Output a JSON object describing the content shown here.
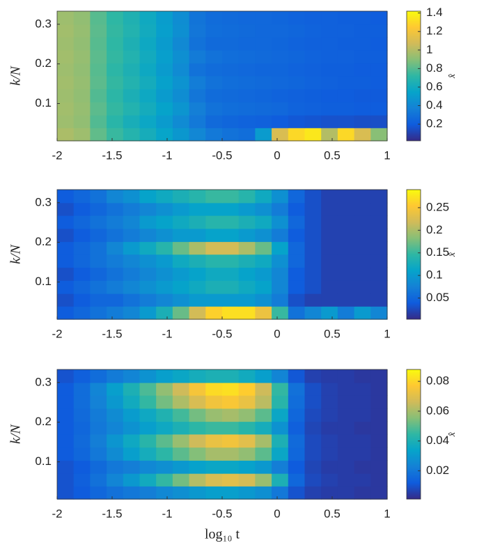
{
  "chart_data": [
    {
      "type": "heatmap",
      "colormap": "parula",
      "ylabel": "k/N",
      "colorbar_label": "x̂",
      "xbins": [
        -2,
        -1.85,
        -1.7,
        -1.55,
        -1.4,
        -1.25,
        -1.1,
        -0.95,
        -0.8,
        -0.65,
        -0.5,
        -0.35,
        -0.2,
        -0.05,
        0.1,
        0.25,
        0.4,
        0.55,
        0.7,
        0.85,
        1
      ],
      "ybins": [
        0.006,
        0.039,
        0.071,
        0.104,
        0.137,
        0.17,
        0.202,
        0.235,
        0.268,
        0.3,
        0.333
      ],
      "xlim": [
        -2,
        1
      ],
      "ylim": [
        0.006,
        0.333
      ],
      "xticks": [
        -2,
        -1.5,
        -1,
        -0.5,
        0,
        0.5,
        1
      ],
      "yticks": [
        0.1,
        0.2,
        0.3
      ],
      "clim": [
        0.02,
        1.42
      ],
      "cticks": [
        0.2,
        0.4,
        0.6,
        0.8,
        1,
        1.2,
        1.4
      ],
      "values": [
        [
          0.98,
          0.95,
          0.82,
          0.74,
          0.68,
          0.62,
          0.55,
          0.48,
          0.4,
          0.33,
          0.3,
          0.28,
          0.5,
          1.1,
          1.3,
          1.35,
          1.0,
          1.3,
          1.1,
          0.9
        ],
        [
          0.95,
          0.92,
          0.79,
          0.7,
          0.63,
          0.57,
          0.5,
          0.42,
          0.33,
          0.26,
          0.24,
          0.23,
          0.22,
          0.2,
          0.18,
          0.17,
          0.16,
          0.16,
          0.15,
          0.15
        ],
        [
          0.96,
          0.93,
          0.81,
          0.73,
          0.67,
          0.61,
          0.54,
          0.47,
          0.36,
          0.3,
          0.28,
          0.27,
          0.26,
          0.25,
          0.23,
          0.22,
          0.21,
          0.21,
          0.2,
          0.2
        ],
        [
          0.95,
          0.92,
          0.79,
          0.71,
          0.64,
          0.58,
          0.5,
          0.43,
          0.32,
          0.27,
          0.26,
          0.25,
          0.24,
          0.23,
          0.22,
          0.21,
          0.2,
          0.2,
          0.19,
          0.19
        ],
        [
          0.96,
          0.93,
          0.81,
          0.73,
          0.67,
          0.61,
          0.53,
          0.46,
          0.35,
          0.3,
          0.28,
          0.27,
          0.26,
          0.25,
          0.24,
          0.23,
          0.22,
          0.21,
          0.21,
          0.2
        ],
        [
          0.95,
          0.92,
          0.8,
          0.71,
          0.65,
          0.58,
          0.5,
          0.42,
          0.3,
          0.27,
          0.26,
          0.25,
          0.24,
          0.24,
          0.23,
          0.22,
          0.21,
          0.21,
          0.2,
          0.2
        ],
        [
          0.96,
          0.93,
          0.81,
          0.73,
          0.67,
          0.6,
          0.52,
          0.44,
          0.34,
          0.3,
          0.28,
          0.27,
          0.26,
          0.25,
          0.24,
          0.23,
          0.22,
          0.22,
          0.21,
          0.21
        ],
        [
          0.95,
          0.92,
          0.8,
          0.72,
          0.65,
          0.58,
          0.5,
          0.41,
          0.3,
          0.26,
          0.26,
          0.25,
          0.25,
          0.24,
          0.23,
          0.22,
          0.22,
          0.21,
          0.21,
          0.2
        ],
        [
          0.96,
          0.93,
          0.81,
          0.73,
          0.67,
          0.6,
          0.52,
          0.44,
          0.32,
          0.28,
          0.27,
          0.26,
          0.25,
          0.25,
          0.24,
          0.23,
          0.22,
          0.22,
          0.21,
          0.21
        ],
        [
          0.95,
          0.92,
          0.8,
          0.72,
          0.66,
          0.59,
          0.51,
          0.43,
          0.31,
          0.27,
          0.26,
          0.25,
          0.25,
          0.24,
          0.23,
          0.22,
          0.22,
          0.21,
          0.21,
          0.2
        ]
      ]
    },
    {
      "type": "heatmap",
      "colormap": "parula",
      "ylabel": "k/N",
      "colorbar_label": "x̂",
      "xbins": [
        -2,
        -1.85,
        -1.7,
        -1.55,
        -1.4,
        -1.25,
        -1.1,
        -0.95,
        -0.8,
        -0.65,
        -0.5,
        -0.35,
        -0.2,
        -0.05,
        0.1,
        0.25,
        0.4,
        0.55,
        0.7,
        0.85,
        1
      ],
      "ybins": [
        0.006,
        0.039,
        0.071,
        0.104,
        0.137,
        0.17,
        0.202,
        0.235,
        0.268,
        0.3,
        0.333
      ],
      "xlim": [
        -2,
        1
      ],
      "ylim": [
        0.006,
        0.333
      ],
      "xticks": [
        -2,
        -1.5,
        -1,
        -0.5,
        0,
        0.5,
        1
      ],
      "yticks": [
        0.1,
        0.2,
        0.3
      ],
      "clim": [
        0.003,
        0.29
      ],
      "cticks": [
        0.05,
        0.1,
        0.15,
        0.2,
        0.25
      ],
      "values": [
        [
          0.04,
          0.05,
          0.06,
          0.07,
          0.08,
          0.1,
          0.13,
          0.17,
          0.22,
          0.26,
          0.27,
          0.27,
          0.24,
          0.15,
          0.06,
          0.08,
          0.1,
          0.07,
          0.1,
          0.08
        ],
        [
          0.03,
          0.04,
          0.05,
          0.05,
          0.06,
          0.07,
          0.08,
          0.09,
          0.1,
          0.1,
          0.1,
          0.1,
          0.09,
          0.07,
          0.03,
          0.02,
          0.02,
          0.02,
          0.02,
          0.02
        ],
        [
          0.04,
          0.05,
          0.06,
          0.07,
          0.08,
          0.09,
          0.1,
          0.11,
          0.12,
          0.13,
          0.13,
          0.12,
          0.11,
          0.08,
          0.04,
          0.03,
          0.02,
          0.02,
          0.02,
          0.02
        ],
        [
          0.03,
          0.04,
          0.05,
          0.06,
          0.07,
          0.08,
          0.09,
          0.1,
          0.11,
          0.12,
          0.12,
          0.11,
          0.1,
          0.08,
          0.04,
          0.03,
          0.02,
          0.02,
          0.02,
          0.02
        ],
        [
          0.04,
          0.05,
          0.06,
          0.07,
          0.08,
          0.09,
          0.1,
          0.12,
          0.13,
          0.14,
          0.14,
          0.13,
          0.12,
          0.09,
          0.05,
          0.03,
          0.02,
          0.02,
          0.02,
          0.02
        ],
        [
          0.04,
          0.05,
          0.06,
          0.08,
          0.1,
          0.12,
          0.14,
          0.17,
          0.2,
          0.22,
          0.22,
          0.2,
          0.17,
          0.11,
          0.05,
          0.03,
          0.02,
          0.02,
          0.02,
          0.02
        ],
        [
          0.03,
          0.04,
          0.05,
          0.06,
          0.07,
          0.08,
          0.09,
          0.1,
          0.1,
          0.11,
          0.11,
          0.1,
          0.09,
          0.07,
          0.04,
          0.03,
          0.02,
          0.02,
          0.02,
          0.02
        ],
        [
          0.04,
          0.05,
          0.06,
          0.07,
          0.08,
          0.1,
          0.11,
          0.12,
          0.13,
          0.14,
          0.14,
          0.13,
          0.12,
          0.09,
          0.05,
          0.03,
          0.02,
          0.02,
          0.02,
          0.02
        ],
        [
          0.03,
          0.04,
          0.05,
          0.06,
          0.07,
          0.08,
          0.09,
          0.1,
          0.11,
          0.11,
          0.11,
          0.1,
          0.09,
          0.07,
          0.04,
          0.03,
          0.02,
          0.02,
          0.02,
          0.02
        ],
        [
          0.04,
          0.05,
          0.06,
          0.08,
          0.09,
          0.11,
          0.12,
          0.13,
          0.14,
          0.15,
          0.15,
          0.14,
          0.12,
          0.09,
          0.05,
          0.03,
          0.02,
          0.02,
          0.02,
          0.02
        ]
      ]
    },
    {
      "type": "heatmap",
      "colormap": "parula",
      "ylabel": "k/N",
      "xlabel": "log₁₀ t",
      "colorbar_label": "x̂",
      "xbins": [
        -2,
        -1.85,
        -1.7,
        -1.55,
        -1.4,
        -1.25,
        -1.1,
        -0.95,
        -0.8,
        -0.65,
        -0.5,
        -0.35,
        -0.2,
        -0.05,
        0.1,
        0.25,
        0.4,
        0.55,
        0.7,
        0.85,
        1
      ],
      "ybins": [
        0.006,
        0.039,
        0.071,
        0.104,
        0.137,
        0.17,
        0.202,
        0.235,
        0.268,
        0.3,
        0.333
      ],
      "xlim": [
        -2,
        1
      ],
      "ylim": [
        0.006,
        0.333
      ],
      "xticks": [
        -2,
        -1.5,
        -1,
        -0.5,
        0,
        0.5,
        1
      ],
      "yticks": [
        0.1,
        0.2,
        0.3
      ],
      "clim": [
        0.001,
        0.088
      ],
      "cticks": [
        0.02,
        0.04,
        0.06,
        0.08
      ],
      "values": [
        [
          0.01,
          0.012,
          0.015,
          0.018,
          0.02,
          0.022,
          0.025,
          0.027,
          0.03,
          0.032,
          0.032,
          0.03,
          0.027,
          0.02,
          0.01,
          0.006,
          0.005,
          0.005,
          0.004,
          0.004
        ],
        [
          0.01,
          0.013,
          0.018,
          0.024,
          0.03,
          0.037,
          0.045,
          0.053,
          0.062,
          0.068,
          0.07,
          0.067,
          0.058,
          0.04,
          0.015,
          0.008,
          0.006,
          0.005,
          0.005,
          0.004
        ],
        [
          0.01,
          0.012,
          0.016,
          0.02,
          0.022,
          0.025,
          0.027,
          0.03,
          0.033,
          0.035,
          0.035,
          0.033,
          0.03,
          0.022,
          0.012,
          0.007,
          0.005,
          0.005,
          0.004,
          0.004
        ],
        [
          0.012,
          0.015,
          0.02,
          0.026,
          0.032,
          0.038,
          0.044,
          0.05,
          0.055,
          0.06,
          0.06,
          0.057,
          0.05,
          0.035,
          0.015,
          0.008,
          0.006,
          0.005,
          0.005,
          0.004
        ],
        [
          0.012,
          0.016,
          0.022,
          0.029,
          0.036,
          0.043,
          0.05,
          0.058,
          0.066,
          0.072,
          0.074,
          0.07,
          0.06,
          0.04,
          0.016,
          0.008,
          0.006,
          0.005,
          0.005,
          0.004
        ],
        [
          0.012,
          0.015,
          0.02,
          0.024,
          0.028,
          0.032,
          0.036,
          0.04,
          0.044,
          0.046,
          0.046,
          0.043,
          0.038,
          0.028,
          0.013,
          0.007,
          0.005,
          0.005,
          0.004,
          0.004
        ],
        [
          0.012,
          0.016,
          0.021,
          0.026,
          0.031,
          0.036,
          0.041,
          0.047,
          0.053,
          0.058,
          0.06,
          0.057,
          0.05,
          0.035,
          0.015,
          0.008,
          0.006,
          0.005,
          0.005,
          0.004
        ],
        [
          0.012,
          0.017,
          0.023,
          0.03,
          0.037,
          0.045,
          0.053,
          0.061,
          0.068,
          0.074,
          0.076,
          0.072,
          0.063,
          0.043,
          0.017,
          0.009,
          0.006,
          0.005,
          0.005,
          0.004
        ],
        [
          0.012,
          0.017,
          0.024,
          0.032,
          0.04,
          0.048,
          0.057,
          0.066,
          0.075,
          0.081,
          0.082,
          0.078,
          0.066,
          0.045,
          0.018,
          0.009,
          0.006,
          0.005,
          0.005,
          0.004
        ],
        [
          0.01,
          0.013,
          0.017,
          0.021,
          0.024,
          0.028,
          0.032,
          0.035,
          0.038,
          0.04,
          0.04,
          0.037,
          0.032,
          0.024,
          0.011,
          0.006,
          0.005,
          0.005,
          0.004,
          0.004
        ]
      ]
    }
  ]
}
